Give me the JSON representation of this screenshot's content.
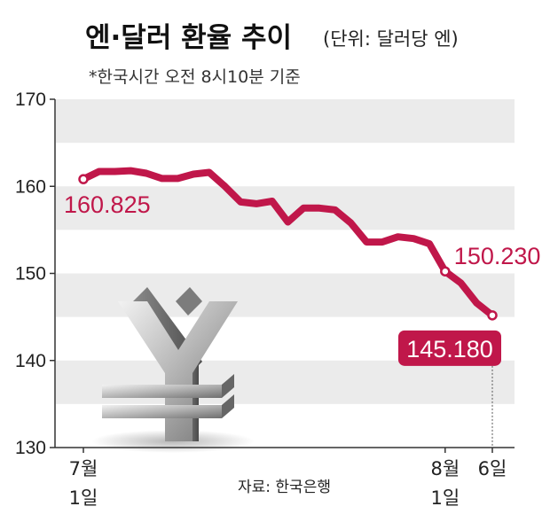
{
  "title": "엔·달러 환율 추이",
  "unit": "(단위: 달러당 엔)",
  "subtitle": "*한국시간 오전 8시10분 기준",
  "source": "자료: 한국은행",
  "colors": {
    "line": "#c0174a",
    "band": "#ebebeb",
    "axis": "#333333"
  },
  "icon": "yen-sign-3d",
  "chart_data": {
    "type": "line",
    "title": "엔·달러 환율 추이",
    "unit": "(단위: 달러당 엔)",
    "ylim": [
      130,
      170
    ],
    "yticks": [
      130,
      140,
      150,
      160,
      170
    ],
    "xlim": [
      0,
      26
    ],
    "xticks": [
      {
        "x": 0,
        "line1": "7월",
        "line2": "1일"
      },
      {
        "x": 23,
        "line1": "8월",
        "line2": "1일"
      },
      {
        "x": 26,
        "line1": "6일",
        "line2": ""
      }
    ],
    "series": [
      {
        "values": [
          {
            "x": 0,
            "y": 160.825
          },
          {
            "x": 1,
            "y": 161.7
          },
          {
            "x": 2,
            "y": 161.7
          },
          {
            "x": 3,
            "y": 161.8
          },
          {
            "x": 4,
            "y": 161.5
          },
          {
            "x": 5,
            "y": 160.9
          },
          {
            "x": 6,
            "y": 160.9
          },
          {
            "x": 7,
            "y": 161.4
          },
          {
            "x": 8,
            "y": 161.6
          },
          {
            "x": 9,
            "y": 160.0
          },
          {
            "x": 10,
            "y": 158.2
          },
          {
            "x": 11,
            "y": 158.0
          },
          {
            "x": 12,
            "y": 158.3
          },
          {
            "x": 13,
            "y": 155.9
          },
          {
            "x": 14,
            "y": 157.5
          },
          {
            "x": 15,
            "y": 157.5
          },
          {
            "x": 16,
            "y": 157.3
          },
          {
            "x": 17,
            "y": 155.8
          },
          {
            "x": 18,
            "y": 153.6
          },
          {
            "x": 19,
            "y": 153.6
          },
          {
            "x": 20,
            "y": 154.2
          },
          {
            "x": 21,
            "y": 154.0
          },
          {
            "x": 22,
            "y": 153.4
          },
          {
            "x": 23,
            "y": 150.23
          },
          {
            "x": 24,
            "y": 148.9
          },
          {
            "x": 25,
            "y": 146.6
          },
          {
            "x": 26,
            "y": 145.18
          }
        ]
      }
    ],
    "annotations": [
      {
        "x": 0,
        "y": 160.825,
        "text": "160.825",
        "style": "plain"
      },
      {
        "x": 23,
        "y": 150.23,
        "text": "150.230",
        "style": "plain"
      },
      {
        "x": 26,
        "y": 145.18,
        "text": "145.180",
        "style": "box"
      }
    ],
    "grid": "alternating-bands"
  }
}
